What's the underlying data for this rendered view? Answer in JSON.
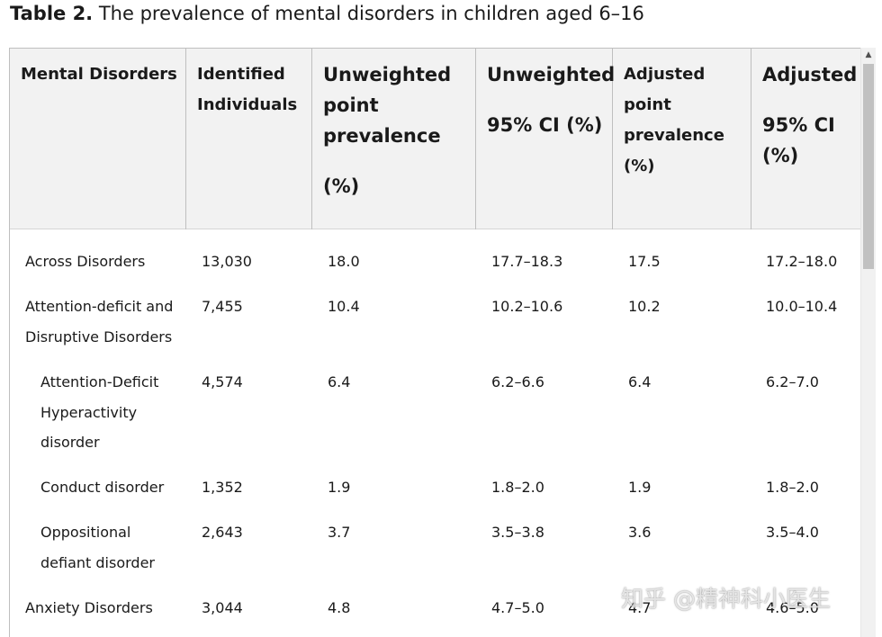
{
  "title": {
    "label": "Table 2.",
    "text": "The prevalence of mental disorders in children aged 6–16"
  },
  "columns": [
    {
      "lines": [
        "Mental Disorders"
      ]
    },
    {
      "lines": [
        "Identified",
        "Individuals"
      ]
    },
    {
      "lines": [
        "Unweighted",
        "point",
        "prevalence",
        "",
        "(%)"
      ]
    },
    {
      "lines": [
        "Unweighted",
        "",
        "95% CI (%)"
      ]
    },
    {
      "lines": [
        "Adjusted",
        "point",
        "prevalence",
        "(%)"
      ]
    },
    {
      "lines": [
        "Adjusted",
        "",
        "95% CI",
        "(%)"
      ]
    }
  ],
  "rows": [
    {
      "disorder": [
        "Across Disorders"
      ],
      "indent": false,
      "identified": "13,030",
      "unweighted_prevalence": "18.0",
      "unweighted_ci": "17.7–18.3",
      "adjusted_prevalence": "17.5",
      "adjusted_ci": "17.2–18.0"
    },
    {
      "disorder": [
        "Attention-deficit and",
        "Disruptive Disorders"
      ],
      "indent": false,
      "identified": "7,455",
      "unweighted_prevalence": "10.4",
      "unweighted_ci": "10.2–10.6",
      "adjusted_prevalence": "10.2",
      "adjusted_ci": "10.0–10.4"
    },
    {
      "disorder": [
        "Attention-Deficit",
        "Hyperactivity",
        "disorder"
      ],
      "indent": true,
      "identified": "4,574",
      "unweighted_prevalence": "6.4",
      "unweighted_ci": "6.2–6.6",
      "adjusted_prevalence": "6.4",
      "adjusted_ci": "6.2–7.0"
    },
    {
      "disorder": [
        "Conduct disorder"
      ],
      "indent": true,
      "identified": "1,352",
      "unweighted_prevalence": "1.9",
      "unweighted_ci": "1.8–2.0",
      "adjusted_prevalence": "1.9",
      "adjusted_ci": "1.8–2.0"
    },
    {
      "disorder": [
        "Oppositional",
        "defiant disorder"
      ],
      "indent": true,
      "identified": "2,643",
      "unweighted_prevalence": "3.7",
      "unweighted_ci": "3.5–3.8",
      "adjusted_prevalence": "3.6",
      "adjusted_ci": "3.5–4.0"
    },
    {
      "disorder": [
        "Anxiety Disorders"
      ],
      "indent": false,
      "identified": "3,044",
      "unweighted_prevalence": "4.8",
      "unweighted_ci": "4.7–5.0",
      "adjusted_prevalence": "4.7",
      "adjusted_ci": "4.6–5.0"
    }
  ],
  "watermark": "知乎 @精神科小医生",
  "scrollbar": {
    "up_icon": "scroll-up-arrow-icon"
  }
}
